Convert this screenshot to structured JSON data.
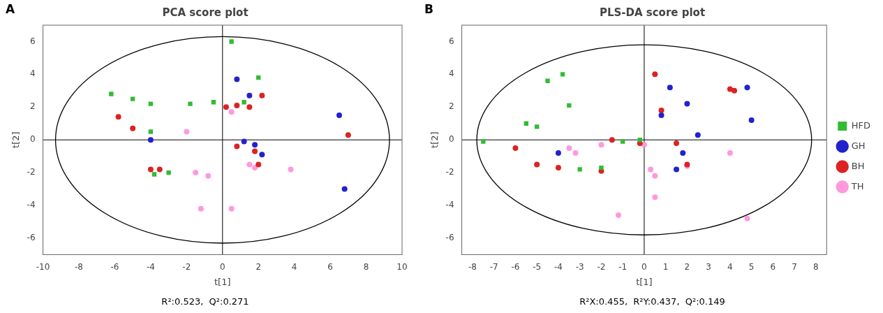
{
  "chart_data": [
    {
      "type": "scatter",
      "title": "PCA score plot",
      "x_label": "t[1]",
      "y_label": "t[2]",
      "annotations": [
        "A",
        "R²:0.523,  Q²:0.271"
      ],
      "series": [
        {
          "name": "HFD",
          "color": "#33bb33",
          "marker": "square",
          "x": [
            -6.2,
            -5.0,
            -4.0,
            -4.0,
            -3.8,
            -3.0,
            -1.8,
            -0.5,
            0.5,
            1.2,
            2.0
          ],
          "values": [
            2.8,
            2.5,
            2.2,
            0.5,
            -2.1,
            -2.0,
            2.2,
            2.3,
            6.0,
            2.3,
            3.8
          ]
        },
        {
          "name": "GH",
          "color": "#2222cc",
          "marker": "circle",
          "x": [
            -4.0,
            0.8,
            1.5,
            1.2,
            1.8,
            2.2,
            6.5,
            6.8
          ],
          "values": [
            0.0,
            3.7,
            2.7,
            -0.1,
            -0.3,
            -0.9,
            1.5,
            -3.0
          ]
        },
        {
          "name": "BH",
          "color": "#dd2222",
          "marker": "circle",
          "x": [
            -5.8,
            -5.0,
            -3.5,
            -4.0,
            0.2,
            0.8,
            1.5,
            0.8,
            1.8,
            2.0,
            2.2,
            7.0
          ],
          "values": [
            1.4,
            0.7,
            -1.8,
            -1.8,
            2.0,
            2.1,
            2.0,
            -0.4,
            -0.7,
            -1.5,
            2.7,
            0.3
          ]
        },
        {
          "name": "TH",
          "color": "#ff99dd",
          "marker": "circle",
          "x": [
            -2.0,
            -1.5,
            -0.8,
            0.5,
            1.5,
            1.8,
            3.8,
            -1.2,
            0.5
          ],
          "values": [
            0.5,
            -2.0,
            -2.2,
            1.7,
            -1.5,
            -1.7,
            -1.8,
            -4.2,
            -4.2
          ]
        }
      ],
      "xlim": [
        -10,
        10
      ],
      "ylim": [
        -7,
        7
      ],
      "xticks": [
        -10,
        -8,
        -6,
        -4,
        -2,
        0,
        2,
        4,
        6,
        8,
        10
      ],
      "yticks": [
        -6,
        -4,
        -2,
        0,
        2,
        4,
        6
      ],
      "ellipse": {
        "cx": 0.0,
        "cy": 0.0,
        "rx": 9.3,
        "ry": 6.3
      },
      "hline": 0,
      "vline": 0,
      "grid": false
    },
    {
      "type": "scatter",
      "title": "PLS-DA score plot",
      "x_label": "t[1]",
      "y_label": "t[2]",
      "annotations": [
        "B",
        "R²X:0.455,  R²Y:0.437,  Q²:0.149"
      ],
      "series": [
        {
          "name": "HFD",
          "color": "#33bb33",
          "marker": "square",
          "x": [
            -7.5,
            -5.5,
            -5.0,
            -4.5,
            -3.8,
            -3.5,
            -3.0,
            -2.0,
            -1.0,
            -0.2
          ],
          "values": [
            -0.1,
            1.0,
            0.8,
            3.6,
            4.0,
            2.1,
            -1.8,
            -1.7,
            -0.1,
            0.0
          ]
        },
        {
          "name": "GH",
          "color": "#2222cc",
          "marker": "circle",
          "x": [
            -4.0,
            0.8,
            1.2,
            2.0,
            2.5,
            1.8,
            5.0,
            4.8,
            1.5
          ],
          "values": [
            -0.8,
            1.5,
            3.2,
            2.2,
            0.3,
            -0.8,
            1.2,
            3.2,
            -1.8
          ]
        },
        {
          "name": "BH",
          "color": "#dd2222",
          "marker": "circle",
          "x": [
            -6.0,
            -5.0,
            -4.0,
            -2.0,
            -1.5,
            -0.2,
            0.5,
            0.8,
            1.5,
            2.0,
            4.0,
            4.2
          ],
          "values": [
            -0.5,
            -1.5,
            -1.7,
            -1.9,
            0.0,
            -0.2,
            4.0,
            1.8,
            -0.2,
            -1.5,
            3.1,
            3.0
          ]
        },
        {
          "name": "TH",
          "color": "#ff99dd",
          "marker": "circle",
          "x": [
            -3.5,
            -3.2,
            -2.0,
            0.0,
            0.3,
            0.5,
            0.5,
            2.0,
            4.0,
            -1.2,
            4.8
          ],
          "values": [
            -0.5,
            -0.8,
            -0.3,
            -0.3,
            -1.8,
            -2.2,
            -3.5,
            -1.6,
            -0.8,
            -4.6,
            -4.8
          ]
        }
      ],
      "xlim": [
        -8.5,
        8.5
      ],
      "ylim": [
        -7,
        7
      ],
      "xticks": [
        -8,
        -7,
        -6,
        -5,
        -4,
        -3,
        -2,
        -1,
        0,
        1,
        2,
        3,
        4,
        5,
        6,
        7,
        8
      ],
      "yticks": [
        -6,
        -4,
        -2,
        0,
        2,
        4,
        6
      ],
      "ellipse": {
        "cx": 0.0,
        "cy": 0.0,
        "rx": 7.8,
        "ry": 5.8
      },
      "hline": 0,
      "vline": 0,
      "grid": false,
      "legend": "right"
    }
  ]
}
